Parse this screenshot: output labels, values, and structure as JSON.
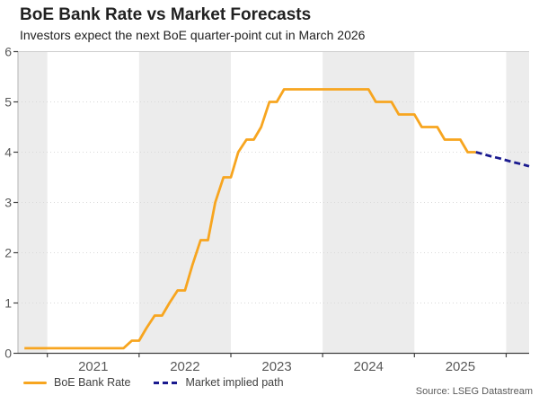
{
  "chart_data": {
    "type": "line",
    "title": "BoE Bank Rate vs Market Forecasts",
    "subtitle": "Investors expect the next BoE quarter-point cut in March 2026",
    "source": "Source: LSEG Datastream",
    "xlabel": "",
    "ylabel": "",
    "ylim": [
      0,
      6
    ],
    "yticks": [
      0,
      1,
      2,
      3,
      4,
      5,
      6
    ],
    "x_min": 2020.68,
    "x_max": 2026.25,
    "x_year_boundaries": [
      2021,
      2022,
      2023,
      2024,
      2025,
      2026
    ],
    "x_tick_labels": [
      {
        "label": "2021",
        "x": 2021.5
      },
      {
        "label": "2022",
        "x": 2022.5
      },
      {
        "label": "2023",
        "x": 2023.5
      },
      {
        "label": "2024",
        "x": 2024.5
      },
      {
        "label": "2025",
        "x": 2025.5
      }
    ],
    "shaded_years": [
      2020,
      2022,
      2024,
      2026
    ],
    "grid": "dotted-horizontal",
    "legend_position": "bottom-left",
    "band_color": "#ECECEC",
    "gridline_color": "#D9D9D9",
    "top_border_color": "#CDCDCD",
    "left_spine_color": "#B3B3B3",
    "axis_color": "#404040",
    "tick_label_color": "#595959",
    "series": [
      {
        "name": "BoE Bank Rate",
        "color": "#F7A51F",
        "dash": null,
        "points": [
          [
            2020.75,
            0.1
          ],
          [
            2020.83,
            0.1
          ],
          [
            2020.92,
            0.1
          ],
          [
            2021.0,
            0.1
          ],
          [
            2021.08,
            0.1
          ],
          [
            2021.17,
            0.1
          ],
          [
            2021.25,
            0.1
          ],
          [
            2021.33,
            0.1
          ],
          [
            2021.42,
            0.1
          ],
          [
            2021.5,
            0.1
          ],
          [
            2021.58,
            0.1
          ],
          [
            2021.67,
            0.1
          ],
          [
            2021.75,
            0.1
          ],
          [
            2021.83,
            0.1
          ],
          [
            2021.92,
            0.25
          ],
          [
            2022.0,
            0.25
          ],
          [
            2022.08,
            0.5
          ],
          [
            2022.17,
            0.75
          ],
          [
            2022.25,
            0.75
          ],
          [
            2022.33,
            1.0
          ],
          [
            2022.42,
            1.25
          ],
          [
            2022.5,
            1.25
          ],
          [
            2022.58,
            1.75
          ],
          [
            2022.67,
            2.25
          ],
          [
            2022.75,
            2.25
          ],
          [
            2022.83,
            3.0
          ],
          [
            2022.92,
            3.5
          ],
          [
            2023.0,
            3.5
          ],
          [
            2023.08,
            4.0
          ],
          [
            2023.17,
            4.25
          ],
          [
            2023.25,
            4.25
          ],
          [
            2023.33,
            4.5
          ],
          [
            2023.42,
            5.0
          ],
          [
            2023.5,
            5.0
          ],
          [
            2023.58,
            5.25
          ],
          [
            2023.67,
            5.25
          ],
          [
            2023.75,
            5.25
          ],
          [
            2023.83,
            5.25
          ],
          [
            2023.92,
            5.25
          ],
          [
            2024.0,
            5.25
          ],
          [
            2024.08,
            5.25
          ],
          [
            2024.17,
            5.25
          ],
          [
            2024.25,
            5.25
          ],
          [
            2024.33,
            5.25
          ],
          [
            2024.42,
            5.25
          ],
          [
            2024.5,
            5.25
          ],
          [
            2024.58,
            5.0
          ],
          [
            2024.67,
            5.0
          ],
          [
            2024.75,
            5.0
          ],
          [
            2024.83,
            4.75
          ],
          [
            2024.92,
            4.75
          ],
          [
            2025.0,
            4.75
          ],
          [
            2025.08,
            4.5
          ],
          [
            2025.17,
            4.5
          ],
          [
            2025.25,
            4.5
          ],
          [
            2025.33,
            4.25
          ],
          [
            2025.42,
            4.25
          ],
          [
            2025.5,
            4.25
          ],
          [
            2025.58,
            4.0
          ],
          [
            2025.67,
            4.0
          ]
        ]
      },
      {
        "name": "Market implied path",
        "color": "#1A1A8F",
        "dash": "7 4",
        "points": [
          [
            2025.67,
            4.0
          ],
          [
            2025.75,
            3.96
          ],
          [
            2025.83,
            3.92
          ],
          [
            2025.92,
            3.88
          ],
          [
            2026.0,
            3.84
          ],
          [
            2026.08,
            3.8
          ],
          [
            2026.17,
            3.76
          ],
          [
            2026.25,
            3.72
          ]
        ]
      }
    ]
  }
}
